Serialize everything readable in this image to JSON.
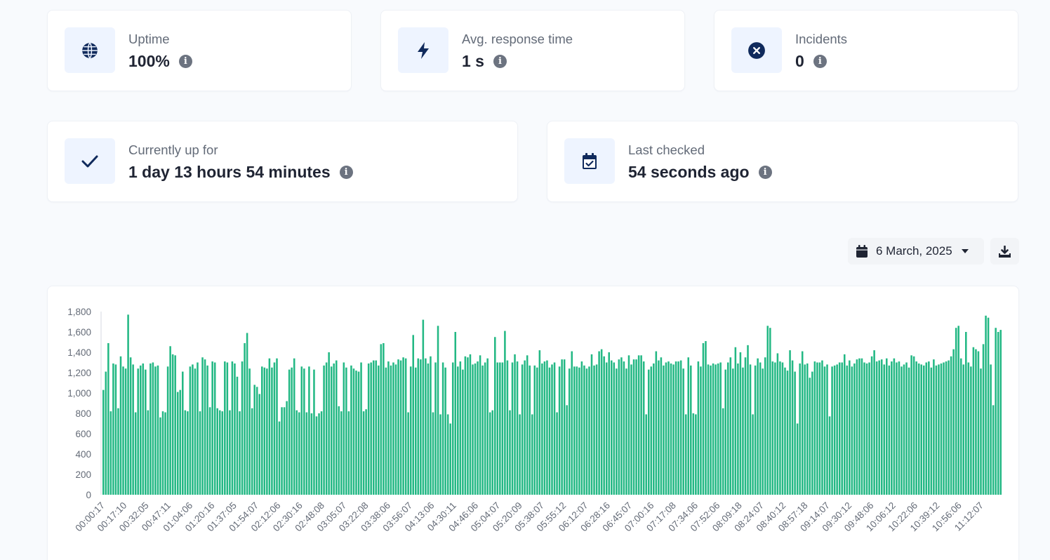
{
  "stats_top": [
    {
      "label": "Uptime",
      "value": "100%",
      "icon": "globe-icon"
    },
    {
      "label": "Avg. response time",
      "value": "1 s",
      "icon": "bolt-icon"
    },
    {
      "label": "Incidents",
      "value": "0",
      "icon": "x-circle-icon"
    }
  ],
  "stats_bottom": [
    {
      "label": "Currently up for",
      "value": "1 day 13 hours 54 minutes",
      "icon": "check-icon"
    },
    {
      "label": "Last checked",
      "value": "54 seconds ago",
      "icon": "calendar-check-icon"
    }
  ],
  "toolbar": {
    "date": "6 March, 2025"
  },
  "colors": {
    "bar": "#23b884",
    "icon": "#102a5c",
    "icon_bg": "#eef4ff"
  },
  "chart_data": {
    "type": "bar",
    "xlabel": "",
    "ylabel": "",
    "ylim": [
      0,
      1800
    ],
    "yticks": [
      0,
      200,
      400,
      600,
      800,
      1000,
      1200,
      1400,
      1600,
      1800
    ],
    "x_tick_labels": [
      "00:00:17",
      "00:17:10",
      "00:32:05",
      "00:47:11",
      "01:04:06",
      "01:20:16",
      "01:37:05",
      "01:54:07",
      "02:12:06",
      "02:30:16",
      "02:48:08",
      "03:05:07",
      "03:22:08",
      "03:38:06",
      "03:56:07",
      "04:13:06",
      "04:30:11",
      "04:46:06",
      "05:04:07",
      "05:20:09",
      "05:38:07",
      "05:55:12",
      "06:12:07",
      "06:28:16",
      "06:45:07",
      "07:00:16",
      "07:17:08",
      "07:34:06",
      "07:52:06",
      "08:09:18",
      "08:24:07",
      "08:40:12",
      "08:57:18",
      "09:14:07",
      "09:30:12",
      "09:48:06",
      "10:06:12",
      "10:22:06",
      "10:39:12",
      "10:56:06",
      "11:12:07"
    ],
    "values": [
      1030,
      1210,
      1490,
      820,
      1290,
      1280,
      850,
      1360,
      1260,
      1240,
      1770,
      1350,
      1280,
      810,
      1240,
      1270,
      1290,
      1230,
      830,
      1290,
      1300,
      1260,
      1270,
      760,
      820,
      810,
      1260,
      1460,
      1380,
      1370,
      1010,
      1030,
      1210,
      830,
      820,
      1260,
      1280,
      1240,
      1300,
      820,
      1350,
      1330,
      1270,
      860,
      1310,
      1300,
      850,
      830,
      820,
      1310,
      1300,
      830,
      1310,
      1290,
      1160,
      820,
      1310,
      1490,
      1590,
      1240,
      850,
      1080,
      1060,
      990,
      1260,
      1250,
      1240,
      1340,
      1250,
      1300,
      1340,
      720,
      860,
      860,
      920,
      1230,
      1250,
      1340,
      830,
      810,
      1260,
      1240,
      810,
      1260,
      800,
      1230,
      770,
      800,
      820,
      1270,
      1300,
      1400,
      1260,
      1290,
      1320,
      870,
      820,
      1300,
      1250,
      820,
      1270,
      1240,
      1220,
      1210,
      1300,
      820,
      840,
      1290,
      1300,
      1320,
      1320,
      1270,
      1480,
      1490,
      1250,
      1310,
      1270,
      1300,
      1280,
      1330,
      1320,
      1350,
      1340,
      810,
      1260,
      1570,
      1250,
      1340,
      1330,
      1720,
      1340,
      1290,
      1360,
      810,
      1300,
      1660,
      790,
      1300,
      1250,
      790,
      700,
      1300,
      1600,
      1260,
      1310,
      1230,
      1360,
      1350,
      1380,
      1280,
      1290,
      1310,
      1370,
      1270,
      1300,
      1340,
      810,
      830,
      1550,
      1300,
      1300,
      1300,
      1610,
      1320,
      830,
      1300,
      1380,
      1310,
      790,
      1280,
      1320,
      1370,
      1270,
      790,
      1270,
      1250,
      1420,
      1290,
      1310,
      1320,
      1250,
      1280,
      1300,
      810,
      1260,
      1330,
      1330,
      880,
      1240,
      1410,
      1260,
      1260,
      1250,
      1310,
      1270,
      1240,
      1260,
      1380,
      1270,
      1280,
      1410,
      1430,
      1360,
      1300,
      1400,
      1320,
      1300,
      1240,
      1330,
      1350,
      1310,
      1240,
      1370,
      1280,
      1330,
      1330,
      1370,
      1370,
      1310,
      790,
      1230,
      1260,
      1290,
      1410,
      1320,
      1350,
      1270,
      1300,
      1310,
      1290,
      1280,
      1310,
      1310,
      1320,
      1240,
      790,
      1350,
      1270,
      800,
      790,
      1310,
      1260,
      1490,
      1510,
      1280,
      1270,
      1290,
      1280,
      1290,
      1300,
      850,
      1230,
      1300,
      1350,
      1240,
      1450,
      1290,
      1400,
      1250,
      1350,
      1470,
      1280,
      790,
      1270,
      1340,
      1300,
      1240,
      1350,
      1660,
      1640,
      1310,
      1300,
      1390,
      1310,
      1300,
      1250,
      1220,
      1420,
      1320,
      1210,
      700,
      1290,
      1410,
      1280,
      1290,
      1150,
      1210,
      1310,
      1300,
      1300,
      1320,
      1260,
      1280,
      770,
      1260,
      1270,
      1280,
      1300,
      1300,
      1380,
      1270,
      1320,
      1260,
      1290,
      1330,
      1340,
      1340,
      1300,
      1290,
      1300,
      1360,
      1420,
      1310,
      1320,
      1330,
      1280,
      1340,
      1270,
      1310,
      1340,
      1300,
      1310,
      1260,
      1280,
      1300,
      1250,
      1370,
      1360,
      1310,
      1290,
      1280,
      1270,
      1300,
      1310,
      1250,
      1330,
      1270,
      1280,
      1290,
      1300,
      1310,
      1320,
      1360,
      1430,
      1640,
      1660,
      1340,
      1280,
      1600,
      1300,
      1260,
      1450,
      1430,
      1410,
      1240,
      1480,
      1760,
      1740,
      1280,
      880,
      1640,
      1600,
      1620
    ]
  }
}
